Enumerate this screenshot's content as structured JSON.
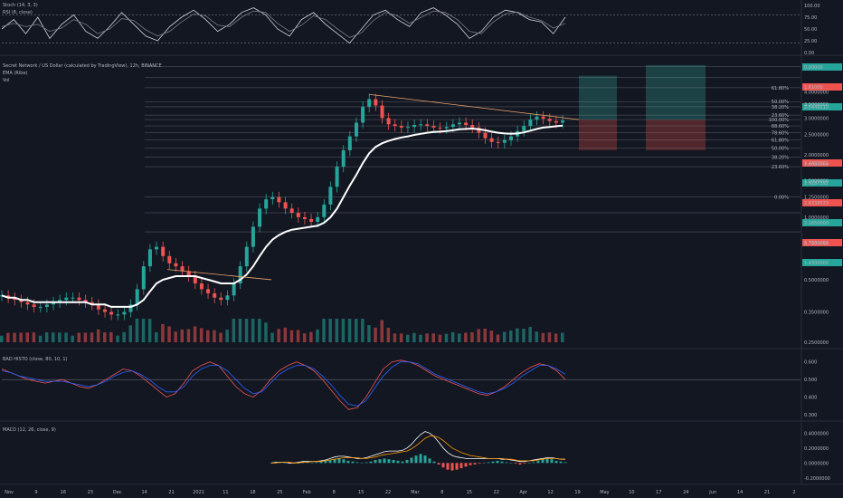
{
  "panels": {
    "stoch": {
      "title": "Stoch (14, 3, 3)",
      "subtitle": "RSI (8, close)"
    },
    "main": {
      "title": "Secret Network / US Dollar (calculated by TradingView), 12h, BINANCE",
      "ema": "EMA (Ribe)",
      "vol": "Vol"
    },
    "bbp": {
      "title": "BAD HISTO (close, 80, 10, 1)"
    },
    "macd": {
      "title": "MACD (12, 26, close, 9)"
    }
  },
  "colors": {
    "background": "#131722",
    "bull": "#26a69a",
    "bear": "#ef5350",
    "trend": "#f0a36a",
    "grid": "#2a2e39",
    "long_zone": "#1f4a4b",
    "short_zone": "#5a2a2e"
  },
  "chart_data": [
    {
      "type": "line",
      "panel": "stoch",
      "title": "Stoch (14, 3, 3)",
      "y_ticks": [
        "100.00",
        "75.00",
        "50.00",
        "25.00",
        "0.00"
      ],
      "ylim": [
        0,
        100
      ],
      "reference_levels": [
        80,
        20
      ],
      "series": [
        {
          "values": [
            50,
            70,
            40,
            75,
            30,
            60,
            80,
            45,
            30,
            55,
            85,
            60,
            35,
            25,
            55,
            75,
            90,
            70,
            45,
            60,
            85,
            95,
            80,
            50,
            35,
            70,
            85,
            60,
            40,
            20,
            50,
            80,
            90,
            70,
            55,
            85,
            95,
            80,
            60,
            30,
            45,
            75,
            90,
            85,
            70,
            65,
            40,
            75
          ]
        },
        {
          "values": [
            55,
            62,
            55,
            60,
            45,
            52,
            70,
            60,
            40,
            50,
            72,
            68,
            48,
            35,
            45,
            65,
            82,
            78,
            58,
            55,
            75,
            88,
            85,
            62,
            45,
            58,
            78,
            70,
            50,
            32,
            42,
            68,
            85,
            78,
            62,
            75,
            88,
            85,
            70,
            45,
            40,
            65,
            82,
            86,
            75,
            68,
            52,
            62
          ]
        }
      ]
    },
    {
      "type": "line",
      "panel": "main",
      "title": "Secret Network / US Dollar (calculated by TradingView), 12h, BINANCE",
      "x_ticks": [
        "Nov",
        "9",
        "16",
        "23",
        "Dec",
        "14",
        "21",
        "2021",
        "11",
        "18",
        "25",
        "Feb",
        "8",
        "15",
        "22",
        "Mar",
        "8",
        "15",
        "22",
        "Apr",
        "12",
        "19",
        "May",
        "10",
        "17",
        "24",
        "Jun",
        "14",
        "21",
        "2"
      ],
      "y_ticks": [
        "4.0000000",
        "3.5000000",
        "3.0000000",
        "2.5000000",
        "2.0000000",
        "1.8000000",
        "1.5000000",
        "1.2500000",
        "1.0000000",
        "0.7500000",
        "0.5000000",
        "0.3500000",
        "0.2500000"
      ],
      "price_labels": [
        "0.00000",
        "1.61000",
        "2.0449210",
        "3.4497961",
        "2.9287392",
        "2.6338533",
        "2.1650000",
        "1.7830092",
        "1.4300000"
      ],
      "fib_labels": [
        "61.80%",
        "50.00%",
        "38.20%",
        "23.60%",
        "100.00%",
        "88.60%",
        "78.60%",
        "61.80%",
        "50.00%",
        "38.20%",
        "23.60%",
        "0.00%"
      ],
      "series": [
        {
          "name": "close",
          "values": [
            0.42,
            0.41,
            0.4,
            0.39,
            0.38,
            0.37,
            0.37,
            0.38,
            0.39,
            0.4,
            0.41,
            0.41,
            0.4,
            0.39,
            0.38,
            0.36,
            0.35,
            0.34,
            0.34,
            0.35,
            0.38,
            0.45,
            0.58,
            0.7,
            0.72,
            0.65,
            0.6,
            0.58,
            0.55,
            0.52,
            0.48,
            0.45,
            0.43,
            0.41,
            0.4,
            0.42,
            0.48,
            0.58,
            0.72,
            0.9,
            1.1,
            1.22,
            1.25,
            1.18,
            1.1,
            1.05,
            1.0,
            0.98,
            0.95,
            1.0,
            1.15,
            1.4,
            1.75,
            2.1,
            2.45,
            2.85,
            3.4,
            3.7,
            3.45,
            3.0,
            2.8,
            2.75,
            2.7,
            2.72,
            2.78,
            2.8,
            2.75,
            2.7,
            2.68,
            2.72,
            2.8,
            2.85,
            2.78,
            2.7,
            2.55,
            2.4,
            2.3,
            2.28,
            2.35,
            2.45,
            2.6,
            2.75,
            2.95,
            3.05,
            2.98,
            2.9,
            2.85,
            2.92
          ]
        },
        {
          "name": "EMA",
          "values": [
            0.42,
            0.41,
            0.41,
            0.4,
            0.4,
            0.39,
            0.39,
            0.39,
            0.39,
            0.39,
            0.39,
            0.39,
            0.39,
            0.39,
            0.38,
            0.38,
            0.38,
            0.37,
            0.37,
            0.37,
            0.37,
            0.38,
            0.4,
            0.44,
            0.48,
            0.5,
            0.51,
            0.52,
            0.52,
            0.52,
            0.52,
            0.51,
            0.5,
            0.49,
            0.48,
            0.48,
            0.48,
            0.5,
            0.53,
            0.58,
            0.65,
            0.72,
            0.78,
            0.82,
            0.85,
            0.87,
            0.88,
            0.89,
            0.9,
            0.91,
            0.94,
            1.0,
            1.1,
            1.25,
            1.42,
            1.6,
            1.82,
            2.03,
            2.18,
            2.27,
            2.33,
            2.38,
            2.42,
            2.45,
            2.49,
            2.52,
            2.55,
            2.57,
            2.58,
            2.6,
            2.62,
            2.65,
            2.66,
            2.67,
            2.65,
            2.62,
            2.58,
            2.55,
            2.53,
            2.52,
            2.53,
            2.56,
            2.61,
            2.66,
            2.7,
            2.72,
            2.74,
            2.76
          ]
        }
      ]
    },
    {
      "type": "line",
      "panel": "bbp",
      "title": "BAD HISTO (close, 80, 10, 1)",
      "y_ticks": [
        "0.600",
        "0.500",
        "0.400",
        "0.300"
      ],
      "ylim": [
        0.28,
        0.65
      ],
      "series": [
        {
          "values": [
            0.56,
            0.54,
            0.52,
            0.5,
            0.49,
            0.48,
            0.49,
            0.5,
            0.48,
            0.46,
            0.45,
            0.47,
            0.5,
            0.53,
            0.56,
            0.55,
            0.52,
            0.48,
            0.44,
            0.4,
            0.42,
            0.48,
            0.55,
            0.58,
            0.6,
            0.58,
            0.52,
            0.46,
            0.42,
            0.4,
            0.44,
            0.5,
            0.55,
            0.58,
            0.6,
            0.58,
            0.55,
            0.5,
            0.44,
            0.38,
            0.33,
            0.34,
            0.4,
            0.48,
            0.56,
            0.6,
            0.61,
            0.6,
            0.58,
            0.55,
            0.52,
            0.5,
            0.48,
            0.46,
            0.44,
            0.42,
            0.41,
            0.43,
            0.46,
            0.5,
            0.54,
            0.57,
            0.59,
            0.58,
            0.55,
            0.5
          ]
        },
        {
          "values": [
            0.55,
            0.54,
            0.52,
            0.51,
            0.5,
            0.49,
            0.49,
            0.49,
            0.48,
            0.47,
            0.46,
            0.47,
            0.49,
            0.52,
            0.54,
            0.55,
            0.53,
            0.5,
            0.46,
            0.43,
            0.43,
            0.46,
            0.52,
            0.56,
            0.58,
            0.58,
            0.55,
            0.5,
            0.45,
            0.42,
            0.43,
            0.48,
            0.53,
            0.56,
            0.58,
            0.58,
            0.56,
            0.52,
            0.47,
            0.41,
            0.36,
            0.35,
            0.38,
            0.45,
            0.52,
            0.57,
            0.6,
            0.6,
            0.59,
            0.56,
            0.53,
            0.51,
            0.49,
            0.47,
            0.45,
            0.43,
            0.42,
            0.43,
            0.45,
            0.48,
            0.52,
            0.55,
            0.58,
            0.58,
            0.56,
            0.53
          ]
        }
      ]
    },
    {
      "type": "bar",
      "panel": "macd",
      "title": "MACD (12, 26, close, 9)",
      "y_ticks": [
        "0.4000000",
        "0.2000000",
        "0.0000000",
        "-0.2000000"
      ],
      "ylim": [
        -0.25,
        0.5
      ],
      "histogram": [
        0.0,
        0.01,
        0.01,
        0.0,
        -0.01,
        0.0,
        0.01,
        0.02,
        0.01,
        0.0,
        0.01,
        0.02,
        0.03,
        0.04,
        0.05,
        0.06,
        0.05,
        0.03,
        0.02,
        0.01,
        0.0,
        0.01,
        0.02,
        0.04,
        0.05,
        0.06,
        0.05,
        0.04,
        0.03,
        0.02,
        0.04,
        0.07,
        0.1,
        0.12,
        0.1,
        0.06,
        0.02,
        -0.02,
        -0.06,
        -0.09,
        -0.1,
        -0.09,
        -0.07,
        -0.05,
        -0.03,
        -0.02,
        -0.01,
        0.0,
        0.01,
        0.02,
        0.03,
        0.02,
        0.01,
        0.0,
        -0.01,
        -0.02,
        -0.01,
        0.0,
        0.01,
        0.03,
        0.05,
        0.06,
        0.05,
        0.03,
        0.02,
        0.01
      ],
      "series": [
        {
          "name": "MACD",
          "values": [
            0.0,
            0.01,
            0.01,
            0.01,
            0.0,
            0.0,
            0.01,
            0.02,
            0.02,
            0.02,
            0.02,
            0.03,
            0.04,
            0.06,
            0.08,
            0.09,
            0.09,
            0.08,
            0.07,
            0.06,
            0.06,
            0.07,
            0.09,
            0.11,
            0.13,
            0.15,
            0.16,
            0.16,
            0.16,
            0.17,
            0.2,
            0.25,
            0.32,
            0.38,
            0.42,
            0.4,
            0.35,
            0.28,
            0.2,
            0.14,
            0.1,
            0.08,
            0.07,
            0.06,
            0.06,
            0.06,
            0.06,
            0.06,
            0.06,
            0.06,
            0.06,
            0.05,
            0.05,
            0.04,
            0.03,
            0.02,
            0.02,
            0.03,
            0.04,
            0.05,
            0.06,
            0.07,
            0.07,
            0.06,
            0.05,
            0.05
          ]
        },
        {
          "name": "Signal",
          "values": [
            0.0,
            0.0,
            0.01,
            0.01,
            0.01,
            0.0,
            0.0,
            0.01,
            0.01,
            0.02,
            0.02,
            0.02,
            0.03,
            0.04,
            0.05,
            0.06,
            0.07,
            0.07,
            0.07,
            0.07,
            0.06,
            0.06,
            0.07,
            0.08,
            0.1,
            0.11,
            0.12,
            0.13,
            0.14,
            0.15,
            0.16,
            0.19,
            0.23,
            0.28,
            0.33,
            0.36,
            0.36,
            0.34,
            0.3,
            0.25,
            0.2,
            0.17,
            0.14,
            0.12,
            0.1,
            0.09,
            0.08,
            0.07,
            0.06,
            0.06,
            0.06,
            0.06,
            0.05,
            0.05,
            0.04,
            0.03,
            0.03,
            0.03,
            0.03,
            0.04,
            0.05,
            0.06,
            0.06,
            0.06,
            0.05,
            0.05
          ]
        }
      ]
    }
  ]
}
